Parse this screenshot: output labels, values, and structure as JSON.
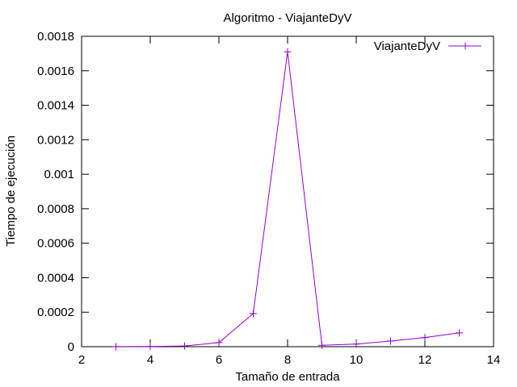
{
  "chart_data": {
    "type": "line",
    "title": "Algoritmo - ViajanteDyV",
    "xlabel": "Tamaño de entrada",
    "ylabel": "Tiempo de ejecución",
    "xlim": [
      2,
      14
    ],
    "ylim": [
      0,
      0.0018
    ],
    "x_ticks": [
      "2",
      "4",
      "6",
      "8",
      "10",
      "12",
      "14"
    ],
    "y_ticks": [
      "0",
      "0.0002",
      "0.0004",
      "0.0006",
      "0.0008",
      "0.001",
      "0.0012",
      "0.0014",
      "0.0016",
      "0.0018"
    ],
    "grid": false,
    "legend_position": "top-right",
    "x": [
      3,
      4,
      5,
      6,
      7,
      8,
      9,
      10,
      11,
      12,
      13
    ],
    "series": [
      {
        "name": "ViajanteDyV",
        "color": "#9400d3",
        "marker": "plus",
        "values": [
          5e-07,
          1e-06,
          4e-06,
          2.4e-05,
          0.000192,
          0.00171,
          8e-06,
          1.5e-05,
          3.3e-05,
          5.3e-05,
          8e-05
        ]
      }
    ]
  }
}
